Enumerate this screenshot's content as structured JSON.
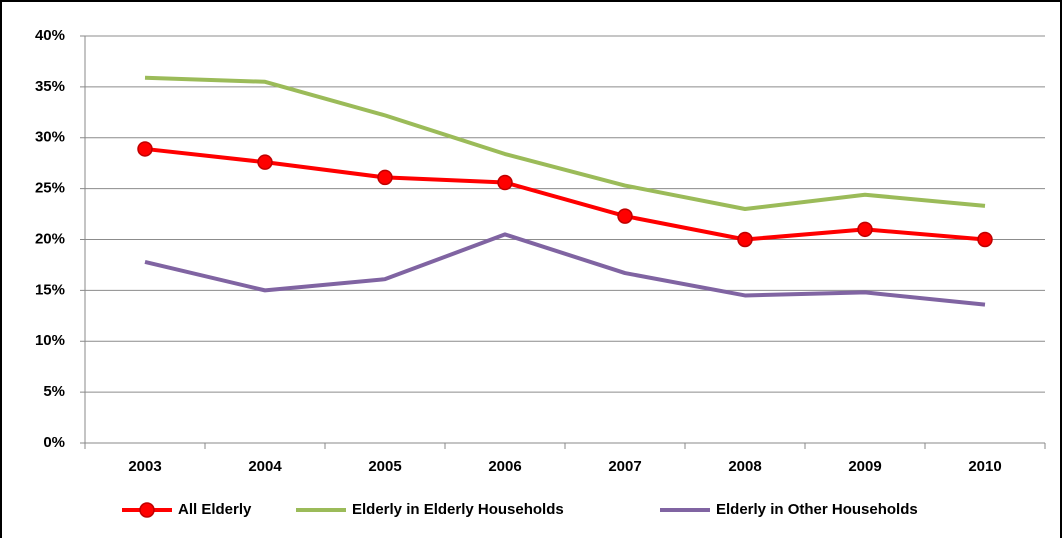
{
  "chart_data": {
    "type": "line",
    "categories": [
      "2003",
      "2004",
      "2005",
      "2006",
      "2007",
      "2008",
      "2009",
      "2010"
    ],
    "series": [
      {
        "name": "All Elderly",
        "color": "#ff0000",
        "markers": true,
        "values": [
          28.9,
          27.6,
          26.1,
          25.6,
          22.3,
          20.0,
          21.0,
          20.0
        ]
      },
      {
        "name": "Elderly in Elderly Households",
        "color": "#9bbb59",
        "markers": false,
        "values": [
          35.9,
          35.5,
          32.2,
          28.4,
          25.3,
          23.0,
          24.4,
          23.3
        ]
      },
      {
        "name": "Elderly in Other Households",
        "color": "#8064a2",
        "markers": false,
        "values": [
          17.8,
          15.0,
          16.1,
          20.5,
          16.7,
          14.5,
          14.8,
          13.6
        ]
      }
    ],
    "ylim": [
      0,
      40
    ],
    "yticks": [
      {
        "value": 0,
        "label": "0%"
      },
      {
        "value": 5,
        "label": "5%"
      },
      {
        "value": 10,
        "label": "10%"
      },
      {
        "value": 15,
        "label": "15%"
      },
      {
        "value": 20,
        "label": "20%"
      },
      {
        "value": 25,
        "label": "25%"
      },
      {
        "value": 30,
        "label": "30%"
      },
      {
        "value": 35,
        "label": "35%"
      },
      {
        "value": 40,
        "label": "40%"
      }
    ],
    "grid": true,
    "legend": "bottom"
  }
}
